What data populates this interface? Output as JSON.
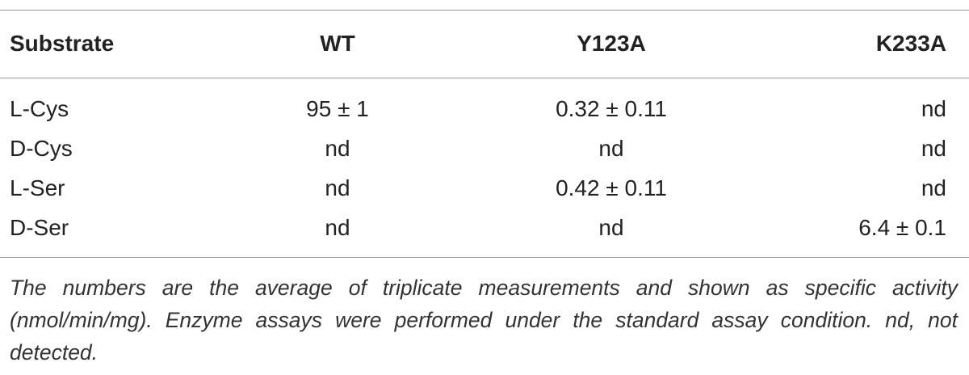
{
  "table": {
    "header": [
      "Substrate",
      "WT",
      "Y123A",
      "K233A"
    ],
    "rows": [
      [
        "L-Cys",
        "95 ± 1",
        "0.32 ± 0.11",
        "nd"
      ],
      [
        "D-Cys",
        "nd",
        "nd",
        "nd"
      ],
      [
        "L-Ser",
        "nd",
        "0.42 ± 0.11",
        "nd"
      ],
      [
        "D-Ser",
        "nd",
        "nd",
        "6.4 ± 0.1"
      ]
    ]
  },
  "footnote": "The numbers are the average of triplicate measurements and shown as specific activity (nmol/min/mg). Enzyme assays were performed under the standard assay condition. nd, not detected."
}
